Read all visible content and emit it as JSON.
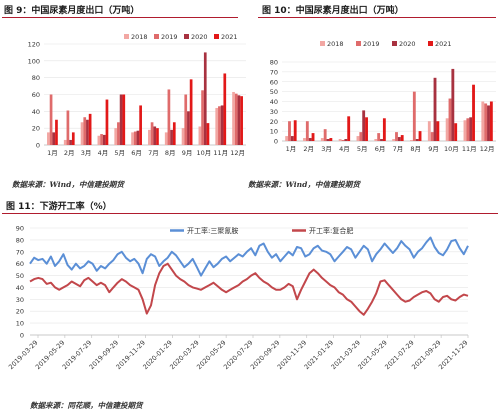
{
  "figure9": {
    "title": "图 9：中国尿素月度出口（万吨）",
    "source": "数据来源：Wind，中信建投期货"
  },
  "figure10": {
    "title": "图 10：中国尿素月度出口（万吨）",
    "source": "数据来源：Wind，中信建投期货"
  },
  "figure11": {
    "title": "图 11：下游开工率（%）",
    "source": "数据来源：同花顺，中信建投期货"
  },
  "colors": {
    "s2018": "#f2a7a3",
    "s2019": "#df6b6b",
    "s2020": "#a83240",
    "s2021": "#e21818",
    "line_blue": "#5b8fd6",
    "line_red": "#c2474b",
    "title_rule": "#b01c2e"
  },
  "chart_data": [
    {
      "type": "bar",
      "categories": [
        "1月",
        "2月",
        "3月",
        "4月",
        "5月",
        "6月",
        "7月",
        "8月",
        "9月",
        "10月",
        "11月",
        "12月"
      ],
      "ylim": [
        0,
        120
      ],
      "yticks": [
        0,
        20,
        40,
        60,
        80,
        100,
        120
      ],
      "legend_position": "top-right",
      "series": [
        {
          "name": "2018",
          "values": [
            15,
            6,
            27,
            11,
            20,
            15,
            18,
            15,
            20,
            22,
            44,
            63
          ]
        },
        {
          "name": "2019",
          "values": [
            60,
            41,
            33,
            13,
            27,
            16,
            27,
            66,
            60,
            65,
            46,
            61
          ]
        },
        {
          "name": "2020",
          "values": [
            15,
            6,
            30,
            12,
            60,
            17,
            22,
            18,
            40,
            110,
            47,
            59
          ]
        },
        {
          "name": "2021",
          "values": [
            30,
            15,
            37,
            54,
            60,
            47,
            20,
            27,
            78,
            26,
            85,
            58
          ]
        }
      ]
    },
    {
      "type": "bar",
      "categories": [
        "1月",
        "2月",
        "3月",
        "4月",
        "5月",
        "6月",
        "7月",
        "8月",
        "9月",
        "10月",
        "11月",
        "12月"
      ],
      "ylim": [
        0,
        80
      ],
      "yticks": [
        0,
        10,
        20,
        30,
        40,
        50,
        60,
        70,
        80
      ],
      "legend_position": "top",
      "series": [
        {
          "name": "2018",
          "values": [
            5,
            3,
            3,
            2,
            5,
            2,
            2,
            1,
            20,
            23,
            21,
            40
          ]
        },
        {
          "name": "2019",
          "values": [
            20,
            20,
            12,
            1,
            9,
            8,
            9,
            50,
            9,
            43,
            23,
            38
          ]
        },
        {
          "name": "2020",
          "values": [
            5,
            3,
            2,
            2,
            31,
            2,
            4,
            2,
            64,
            73,
            24,
            36
          ]
        },
        {
          "name": "2021",
          "values": [
            21,
            8,
            3,
            25,
            24,
            23,
            6,
            10,
            20,
            18,
            57,
            40
          ]
        }
      ]
    },
    {
      "type": "line",
      "x_ticks": [
        "2019-03-29",
        "2019-05-29",
        "2019-07-29",
        "2019-09-29",
        "2019-11-29",
        "2020-01-29",
        "2020-03-29",
        "2020-05-29",
        "2020-07-29",
        "2020-09-29",
        "2020-11-29",
        "2021-01-29",
        "2021-03-29",
        "2021-05-29",
        "2021-07-29",
        "2021-09-29",
        "2021-11-29"
      ],
      "ylim": [
        0,
        90
      ],
      "yticks": [
        0,
        10,
        20,
        30,
        40,
        50,
        60,
        70,
        80,
        90
      ],
      "legend_position": "top",
      "series": [
        {
          "name": "开工率:三聚氰胺",
          "values": [
            60,
            65,
            63,
            64,
            60,
            66,
            58,
            62,
            68,
            59,
            55,
            60,
            56,
            58,
            62,
            60,
            54,
            58,
            56,
            60,
            63,
            68,
            70,
            65,
            62,
            64,
            60,
            52,
            64,
            68,
            66,
            58,
            62,
            65,
            70,
            67,
            62,
            57,
            60,
            64,
            57,
            50,
            56,
            62,
            57,
            60,
            64,
            66,
            62,
            65,
            68,
            66,
            70,
            73,
            67,
            75,
            77,
            70,
            65,
            68,
            62,
            66,
            70,
            67,
            74,
            73,
            66,
            68,
            73,
            75,
            71,
            70,
            68,
            62,
            66,
            70,
            74,
            72,
            65,
            70,
            75,
            72,
            62,
            68,
            72,
            77,
            73,
            69,
            73,
            79,
            75,
            72,
            65,
            70,
            73,
            78,
            82,
            74,
            69,
            67,
            72,
            79,
            80,
            73,
            68,
            75
          ]
        },
        {
          "name": "开工率:复合肥",
          "values": [
            45,
            47,
            48,
            47,
            43,
            44,
            40,
            38,
            40,
            42,
            45,
            43,
            41,
            46,
            48,
            45,
            42,
            44,
            42,
            36,
            40,
            44,
            47,
            45,
            42,
            40,
            38,
            30,
            18,
            25,
            42,
            52,
            58,
            60,
            55,
            50,
            47,
            45,
            42,
            40,
            39,
            38,
            40,
            42,
            44,
            41,
            38,
            36,
            38,
            40,
            42,
            45,
            47,
            50,
            52,
            48,
            45,
            43,
            40,
            38,
            38,
            40,
            43,
            41,
            30,
            38,
            45,
            52,
            55,
            52,
            48,
            45,
            42,
            40,
            36,
            34,
            30,
            28,
            24,
            20,
            17,
            22,
            28,
            35,
            45,
            46,
            42,
            38,
            34,
            30,
            28,
            29,
            32,
            34,
            36,
            37,
            35,
            30,
            28,
            32,
            33,
            30,
            29,
            32,
            34,
            33
          ]
        }
      ]
    }
  ]
}
